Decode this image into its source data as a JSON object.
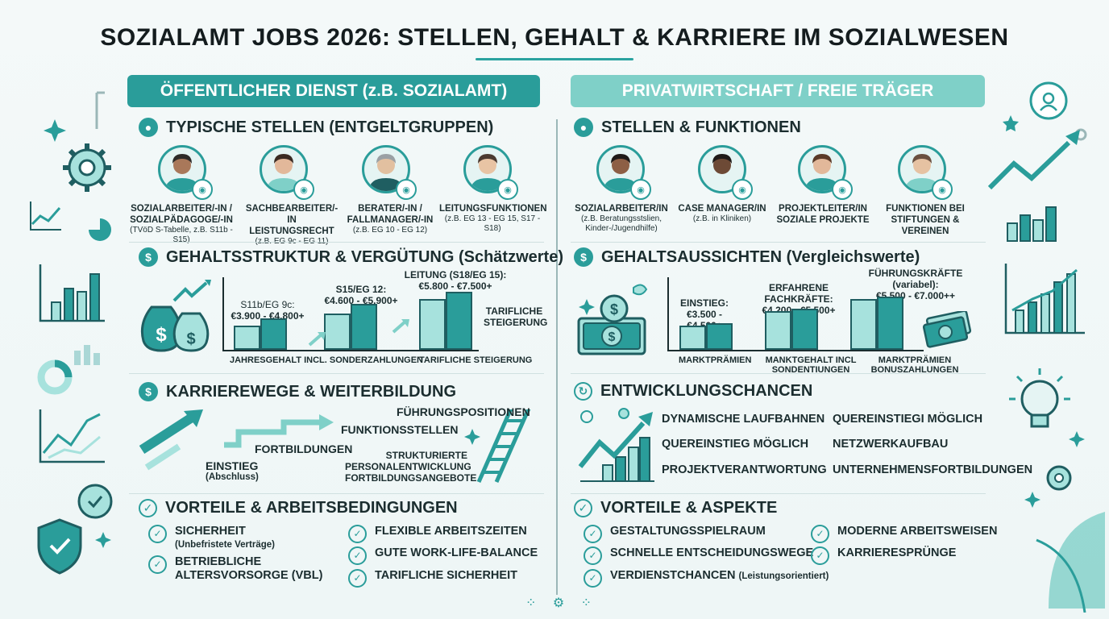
{
  "title": "SOZIALAMT JOBS 2026: STELLEN, GEHALT & KARRIERE IM SOZIALWESEN",
  "left": {
    "banner": "ÖFFENTLICHER DIENST (z.B. SOZIALAMT)",
    "stellen": {
      "heading": "TYPISCHE STELLEN (ENTGELTGRUPPEN)",
      "roles": [
        {
          "title": "SOZIALARBEITER/-IN / SOZIALPÄDAGOGE/-IN",
          "sub": "(TVöD S-Tabelle, z.B. S11b - S15)"
        },
        {
          "title": "SACHBEARBEITER/-IN LEISTUNGSRECHT",
          "sub": "(z.B. EG 9c - EG 11)"
        },
        {
          "title": "BERATER/-IN / FALLMANAGER/-IN",
          "sub": "(z.B. EG 10 - EG 12)"
        },
        {
          "title": "LEITUNGSFUNKTIONEN",
          "sub": "(z.B. EG 13 - EG 15, S17 - S18)"
        }
      ]
    },
    "gehalt": {
      "heading": "GEHALTSSTRUKTUR & VERGÜTUNG (Schätzwerte)",
      "labels": [
        {
          "name": "S11b/EG 9c:",
          "range": "€3.900 - €4.800+"
        },
        {
          "name": "S15/EG 12:",
          "range": "€4.600 - €5.900+"
        },
        {
          "name": "LEITUNG (S18/EG 15):",
          "range": "€5.800 - €7.500+"
        }
      ],
      "side_label": "TARIFLICHE STEIGERUNG",
      "footer_left": "JAHRESGEHALT INCL. SONDERZAHLUNGEN",
      "footer_right": "TARIFLICHE STEIGERUNG"
    },
    "karriere": {
      "heading": "KARRIEREWEGE & WEITERBILDUNG",
      "einstieg": "EINSTIEG",
      "einstieg_sub": "(Abschluss)",
      "fortbildungen": "FORTBILDUNGEN",
      "funktionsstellen": "FUNKTIONSSTELLEN",
      "fuehrung": "FÜHRUNGSPOSITIONEN",
      "strukturiert": "STRUKTURIERTE PERSONALENTWICKLUNG FORTBILDUNGSANGEBOTE"
    },
    "vorteile": {
      "heading": "VORTEILE & ARBEITSBEDINGUNGEN",
      "col1": [
        {
          "label": "SICHERHEIT",
          "sub": "(Unbefristete Verträge)"
        },
        {
          "label": "BETRIEBLICHE ALTERSVORSORGE (VBL)",
          "sub": ""
        }
      ],
      "col2": [
        {
          "label": "FLEXIBLE ARBEITSZEITEN"
        },
        {
          "label": "GUTE WORK-LIFE-BALANCE"
        },
        {
          "label": "TARIFLICHE SICHERHEIT"
        }
      ]
    }
  },
  "right": {
    "banner": "PRIVATWIRTSCHAFT / FREIE TRÄGER",
    "stellen": {
      "heading": "STELLEN & FUNKTIONEN",
      "roles": [
        {
          "title": "SOZIALARBEITER/IN",
          "sub": "(z.B. Beratungsstslien, Kinder-/Jugendhilfe)"
        },
        {
          "title": "CASE MANAGER/IN",
          "sub": "(z.B. in Kliniken)"
        },
        {
          "title": "PROJEKTLEITER/IN SOZIALE PROJEKTE",
          "sub": ""
        },
        {
          "title": "FUNKTIONEN BEI STIFTUNGEN & VEREINEN",
          "sub": ""
        }
      ]
    },
    "gehalt": {
      "heading": "GEHALTSAUSSICHTEN (Vergleichswerte)",
      "labels": [
        {
          "name": "EINSTIEG:",
          "range": "€3.500 - €4.500+"
        },
        {
          "name": "ERFAHRENE FACHKRÄFTE:",
          "range": "€4.200 - €5.500+"
        },
        {
          "name": "FÜHRUNGSKRÄFTE (variabel):",
          "range": "€5.500 - €7.000++"
        }
      ],
      "footer": [
        "MARKTPRÄMIEN",
        "MANKTGEHALT INCL SONDENTIUNGEN",
        "MARKTPRÄMIEN BONUSZAHLUNGEN"
      ]
    },
    "entwicklung": {
      "heading": "ENTWICKLUNGSCHANCEN",
      "col1": [
        "DYNAMISCHE LAUFBAHNEN",
        "QUEREINSTIEG MÖGLICH",
        "PROJEKTVERANTWORTUNG"
      ],
      "col2": [
        "QUEREINSTIEGI MÖGLICH",
        "NETZWERKAUFBAU",
        "UNTERNEHMENSFORTBILDUNGEN"
      ]
    },
    "vorteile": {
      "heading": "VORTEILE & ASPEKTE",
      "col1": [
        "GESTALTUNGSSPIELRAUM",
        "SCHNELLE ENTSCHEIDUNGSWEGE",
        "VERDIENSTCHANCEN"
      ],
      "col1_sub3": "(Leistungsorientiert)",
      "col2": [
        "MODERNE ARBEITSWEISEN",
        "KARRIERESPRÜNGE"
      ]
    }
  },
  "colors": {
    "accent": "#2a9d9a",
    "accent_light": "#7fd0c8",
    "bar_light": "#a7e2dd",
    "dark": "#1b2d2f"
  },
  "chart_data": [
    {
      "type": "bar",
      "title": "",
      "series": [
        {
          "values": [
            1,
            1.3,
            1.5,
            1.9,
            2.1,
            2.4
          ]
        }
      ]
    },
    {
      "type": "bar",
      "title": "",
      "series": [
        {
          "values": [
            1,
            1.1,
            1.6,
            1.7,
            2.1,
            2.2
          ]
        }
      ]
    }
  ]
}
